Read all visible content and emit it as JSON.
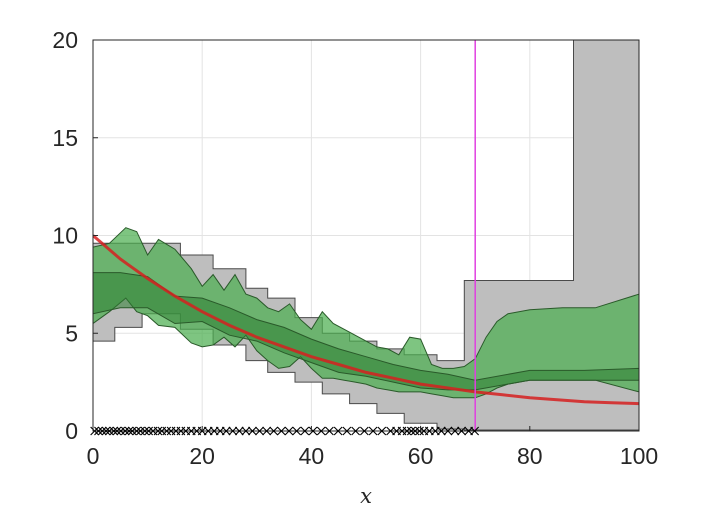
{
  "chart_data": {
    "type": "line",
    "title": "",
    "xlabel": "x",
    "ylabel": "",
    "xlim": [
      0,
      100
    ],
    "ylim": [
      0,
      20
    ],
    "xticks": [
      0,
      20,
      40,
      60,
      80,
      100
    ],
    "yticks": [
      0,
      5,
      10,
      15,
      20
    ],
    "grid": true,
    "legend": "none",
    "colors": {
      "true_curve": "#d62020",
      "gray_band_fill": "#bebebe",
      "green_band_fill": "#4caf50",
      "green_inner_fill": "#2e7d32",
      "vertical_line": "#e040e0",
      "markers": "#000000"
    },
    "series": [
      {
        "kind": "curve",
        "x": [
          0,
          5,
          10,
          15,
          20,
          25,
          30,
          35,
          40,
          45,
          50,
          55,
          60,
          65,
          70,
          75,
          80,
          85,
          90,
          95,
          100
        ],
        "y": [
          10.0,
          8.8,
          7.8,
          6.9,
          6.1,
          5.4,
          4.8,
          4.3,
          3.8,
          3.4,
          3.0,
          2.7,
          2.4,
          2.2,
          2.0,
          1.85,
          1.7,
          1.6,
          1.5,
          1.45,
          1.4
        ]
      },
      {
        "kind": "band-gray",
        "x": [
          0,
          4,
          4,
          9,
          9,
          16,
          16,
          22,
          22,
          28,
          28,
          32,
          32,
          37,
          37,
          42,
          42,
          47,
          47,
          52,
          52,
          57,
          57,
          63,
          63,
          68,
          68,
          88,
          88,
          100
        ],
        "upper": [
          9.6,
          9.6,
          9.6,
          9.6,
          9.6,
          9.6,
          9.0,
          9.0,
          8.3,
          8.3,
          7.3,
          7.3,
          6.8,
          6.8,
          5.8,
          5.8,
          5.0,
          5.0,
          4.6,
          4.6,
          4.2,
          4.2,
          3.9,
          3.9,
          3.6,
          3.6,
          7.7,
          7.7,
          20,
          20
        ],
        "lower": [
          4.6,
          4.6,
          5.3,
          5.3,
          6.0,
          6.0,
          5.2,
          5.2,
          4.4,
          4.4,
          3.6,
          3.6,
          3.0,
          3.0,
          2.5,
          2.5,
          1.9,
          1.9,
          1.4,
          1.4,
          0.9,
          0.9,
          0.4,
          0.4,
          0.1,
          0.1,
          0.05,
          0.05,
          0.05,
          0.05
        ]
      },
      {
        "kind": "band-green",
        "x": [
          0,
          3,
          6,
          8,
          10,
          12,
          15,
          18,
          20,
          22,
          24,
          26,
          28,
          30,
          32,
          34,
          36,
          38,
          40,
          42,
          44,
          46,
          48,
          50,
          52,
          54,
          56,
          58,
          60,
          62,
          64,
          66,
          68,
          70,
          72,
          74,
          76,
          80,
          86,
          92,
          100
        ],
        "upper": [
          9.4,
          9.6,
          10.4,
          10.2,
          9.0,
          9.8,
          9.3,
          8.3,
          7.4,
          8.0,
          7.2,
          8.0,
          7.0,
          6.8,
          6.3,
          6.1,
          6.5,
          5.7,
          5.2,
          6.1,
          5.5,
          5.2,
          4.9,
          4.6,
          4.3,
          4.2,
          3.9,
          4.8,
          4.7,
          3.4,
          3.2,
          3.2,
          3.3,
          3.7,
          4.8,
          5.6,
          6.0,
          6.2,
          6.3,
          6.3,
          7.0
        ],
        "lower": [
          5.5,
          6.1,
          6.8,
          6.1,
          5.9,
          5.4,
          5.3,
          4.5,
          4.3,
          4.4,
          4.8,
          4.3,
          4.9,
          4.1,
          3.6,
          3.2,
          3.3,
          3.8,
          3.2,
          2.7,
          2.7,
          2.6,
          2.5,
          2.4,
          2.2,
          2.1,
          2.0,
          2.0,
          2.0,
          1.9,
          1.8,
          1.7,
          1.7,
          1.7,
          1.9,
          2.2,
          2.4,
          2.6,
          2.6,
          2.6,
          2.0
        ]
      },
      {
        "kind": "band-green-inner",
        "x": [
          0,
          5,
          10,
          15,
          20,
          25,
          30,
          35,
          40,
          45,
          50,
          55,
          60,
          65,
          70,
          80,
          90,
          100
        ],
        "upper": [
          8.1,
          8.1,
          7.9,
          6.9,
          6.8,
          6.3,
          5.7,
          5.3,
          4.7,
          4.2,
          3.8,
          3.4,
          3.1,
          2.9,
          2.6,
          3.1,
          3.1,
          3.2
        ],
        "lower": [
          6.0,
          6.3,
          6.3,
          5.5,
          5.6,
          4.9,
          4.6,
          4.0,
          3.5,
          3.0,
          2.8,
          2.5,
          2.2,
          2.1,
          2.1,
          2.6,
          2.6,
          2.6
        ]
      },
      {
        "kind": "vertical-line",
        "x": [
          70
        ]
      },
      {
        "kind": "markers",
        "x": [
          0.3,
          1,
          1.7,
          2.4,
          3,
          3.8,
          4.4,
          5.1,
          5.9,
          6.6,
          7.2,
          8,
          8.7,
          9.5,
          10.2,
          11,
          11.9,
          12.6,
          13.5,
          14.3,
          15.2,
          16.1,
          17,
          18,
          19,
          20,
          21.1,
          22.2,
          23.3,
          24.4,
          25.6,
          26.8,
          28,
          29.2,
          30.5,
          31.8,
          33.1,
          34.5,
          35.9,
          37.3,
          38.8,
          40.3,
          41.8,
          43.3,
          44.9,
          46.5,
          48.1,
          49.7,
          51.3,
          52.9,
          54.5,
          55.6,
          56.6,
          57.5,
          58.3,
          59,
          59.8,
          60.6,
          61.6,
          62.7,
          63.8,
          65,
          66.3,
          67.5,
          68.8,
          69.9
        ],
        "y": 0
      }
    ]
  }
}
